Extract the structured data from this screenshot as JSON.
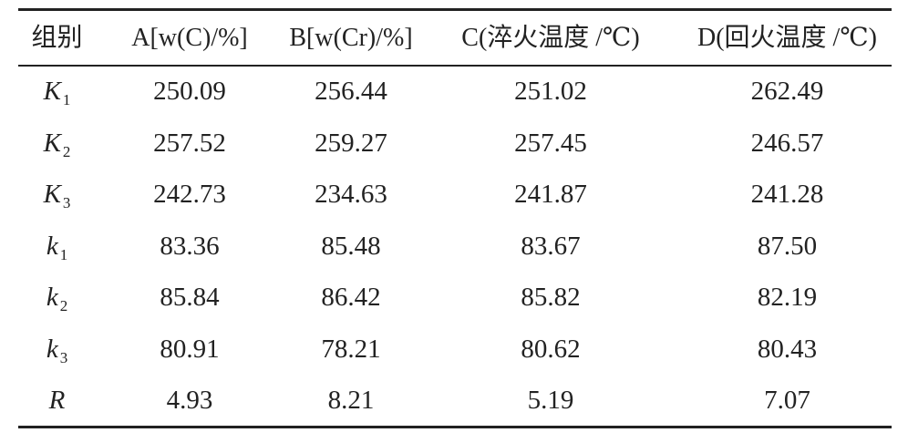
{
  "table": {
    "header": [
      "组别",
      "A[w(C)/%]",
      "B[w(Cr)/%]",
      "C(淬火温度 /℃)",
      "D(回火温度 /℃)"
    ],
    "rows": [
      {
        "symbol": "K",
        "subscript": "1",
        "cells": [
          "250.09",
          "256.44",
          "251.02",
          "262.49"
        ]
      },
      {
        "symbol": "K",
        "subscript": "2",
        "cells": [
          "257.52",
          "259.27",
          "257.45",
          "246.57"
        ]
      },
      {
        "symbol": "K",
        "subscript": "3",
        "cells": [
          "242.73",
          "234.63",
          "241.87",
          "241.28"
        ]
      },
      {
        "symbol": "k",
        "subscript": "1",
        "cells": [
          "83.36",
          "85.48",
          "83.67",
          "87.50"
        ]
      },
      {
        "symbol": "k",
        "subscript": "2",
        "cells": [
          "85.84",
          "86.42",
          "85.82",
          "82.19"
        ]
      },
      {
        "symbol": "k",
        "subscript": "3",
        "cells": [
          "80.91",
          "78.21",
          "80.62",
          "80.43"
        ]
      },
      {
        "symbol": "R",
        "cells": [
          "4.93",
          "8.21",
          "5.19",
          "7.07"
        ]
      }
    ]
  }
}
